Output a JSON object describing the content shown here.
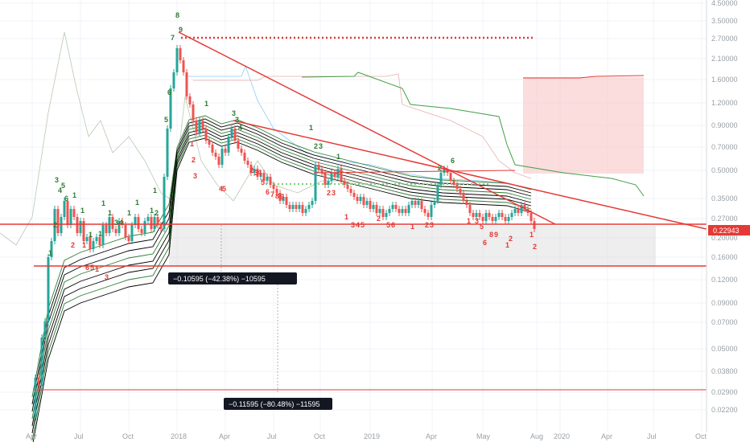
{
  "colors": {
    "up": "#26a69a",
    "down": "#ef5350",
    "support": "#e53935",
    "trendline": "#e53935",
    "ichimoku_green": "#43a047",
    "ichimoku_grey": "#b9c9b0",
    "ichimoku_blue": "#90caf9",
    "ichimoku_pink": "#e8b0b0",
    "ema": "#000000",
    "ema_green": "#2e7d32",
    "dot_green": "#76d275",
    "td_green": "#2e7d32",
    "td_red": "#e53935",
    "price_tag": "#e53935",
    "grid": "#f0f3fa",
    "measure_fill": "#d9d9d9",
    "target_fill": "#f8c7c7"
  },
  "chart_data": {
    "type": "candlestick",
    "log_scale": true,
    "grid": true,
    "price_axis_ticks": [
      "4.50000",
      "3.50000",
      "2.70000",
      "2.10000",
      "1.60000",
      "1.20000",
      "0.90000",
      "0.70000",
      "0.50000",
      "0.35000",
      "0.27000",
      "0.20000",
      "0.16000",
      "0.12000",
      "0.09000",
      "0.07000",
      "0.05000",
      "0.03800",
      "0.02900",
      "0.02200"
    ],
    "time_axis_ticks": [
      "Apr",
      "Jul",
      "Oct",
      "2018",
      "Apr",
      "Jul",
      "Oct",
      "2019",
      "Apr",
      "May",
      "Aug",
      "2020",
      "Apr",
      "Jul",
      "Oct"
    ],
    "last_price_label": "0.22943",
    "support_lines": [
      0.2175,
      0.138,
      0.0298
    ],
    "dotted_resistance": 2.71,
    "target_zone": {
      "low": 0.52,
      "high": 1.82
    },
    "measure_box": {
      "low": 0.138,
      "high": 0.2175
    },
    "measurements": [
      {
        "text": "−0.10595 (−42.38%) −10595"
      },
      {
        "text": "−0.11595 (−80.48%) −11595"
      }
    ]
  }
}
